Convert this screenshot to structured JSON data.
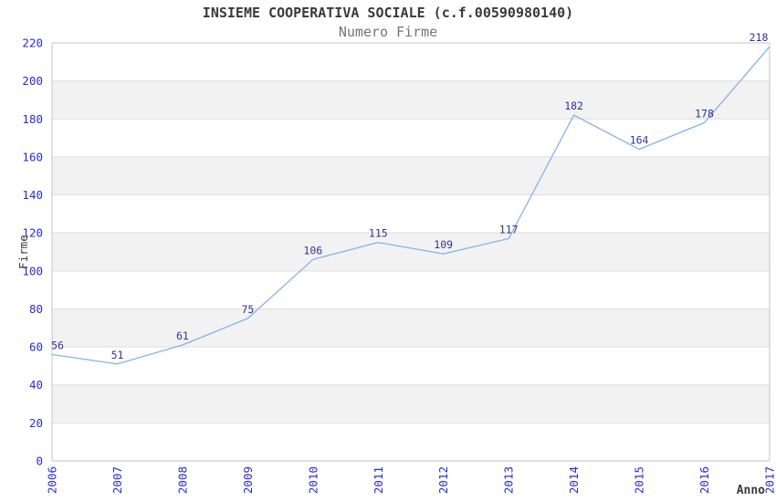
{
  "header": {
    "title": "INSIEME COOPERATIVA SOCIALE (c.f.00590980140)",
    "subtitle": "Numero Firme"
  },
  "chart_data": {
    "type": "line",
    "title": "INSIEME COOPERATIVA SOCIALE (c.f.00590980140)",
    "subtitle": "Numero Firme",
    "xlabel": "Anno",
    "ylabel": "Firme",
    "categories": [
      "2006",
      "2007",
      "2008",
      "2009",
      "2010",
      "2011",
      "2012",
      "2013",
      "2014",
      "2015",
      "2016",
      "2017"
    ],
    "series": [
      {
        "name": "Numero Firme",
        "values": [
          56,
          51,
          61,
          75,
          106,
          115,
          109,
          117,
          182,
          164,
          178,
          218
        ]
      }
    ],
    "ylim": [
      0,
      220
    ],
    "ytick_step": 20,
    "grid": true,
    "legend_position": "none",
    "band_fill": "alternating-horizontal"
  },
  "colors": {
    "line": "#85b3e8",
    "data_label": "#333399",
    "tick_label": "#2a2ad2",
    "band": "#f2f2f2",
    "grid": "#dedede",
    "border": "#c6c6c6",
    "axis_title": "#3a3a3a",
    "title": "#3a3a3a",
    "subtitle": "#757575",
    "background": "#ffffff"
  }
}
